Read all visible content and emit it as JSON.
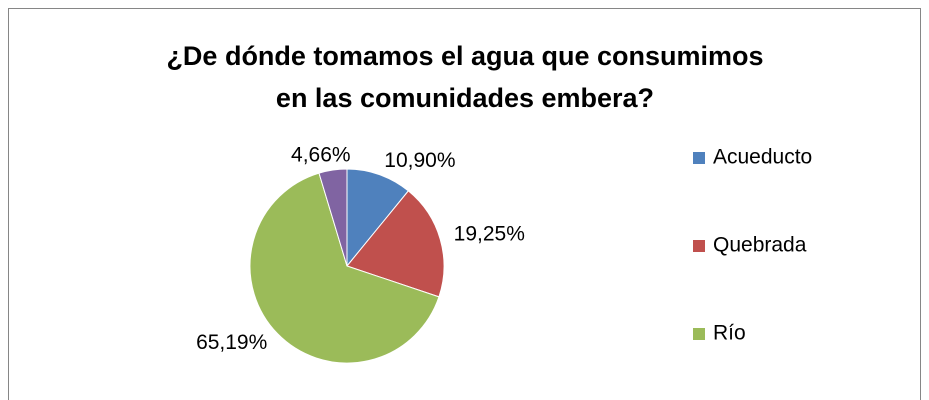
{
  "chart_data": {
    "type": "pie",
    "title": "¿De dónde tomamos el agua que consumimos en las comunidades embera?",
    "categories": [
      "Acueducto",
      "Quebrada",
      "Río",
      null
    ],
    "values": [
      10.9,
      19.25,
      65.19,
      4.66
    ],
    "value_labels": [
      "10,90%",
      "19,25%",
      "65,19%",
      "4,66%"
    ],
    "colors": [
      "#4f81bd",
      "#c0504d",
      "#9bbb59",
      "#8064a2"
    ],
    "legend": "right"
  }
}
